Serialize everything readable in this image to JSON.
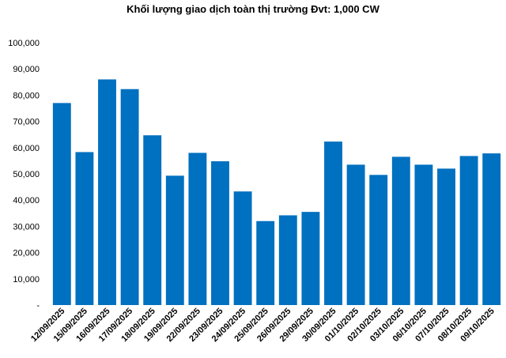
{
  "chart_data": {
    "type": "bar",
    "title": "Khối lượng giao dịch toàn thị trường Đvt: 1,000 CW",
    "xlabel": "",
    "ylabel": "",
    "categories": [
      "12/09/2025",
      "15/09/2025",
      "16/09/2025",
      "17/09/2025",
      "18/09/2025",
      "19/09/2025",
      "22/09/2025",
      "23/09/2025",
      "24/09/2025",
      "25/09/2025",
      "26/09/2025",
      "29/09/2025",
      "30/09/2025",
      "01/10/2025",
      "02/10/2025",
      "03/10/2025",
      "06/10/2025",
      "07/10/2025",
      "08/10/2025",
      "09/10/2025"
    ],
    "values": [
      77000,
      58300,
      86000,
      82300,
      64700,
      49300,
      58000,
      54800,
      43300,
      32000,
      34200,
      35500,
      62300,
      53500,
      49600,
      56500,
      53500,
      52000,
      56800,
      57800
    ],
    "ylim": [
      0,
      100000
    ],
    "ytick_labels": [
      "-",
      "10,000",
      "20,000",
      "30,000",
      "40,000",
      "50,000",
      "60,000",
      "70,000",
      "80,000",
      "90,000",
      "100,000"
    ],
    "bar_color": "#0070C0",
    "grid": false,
    "legend": "none"
  }
}
